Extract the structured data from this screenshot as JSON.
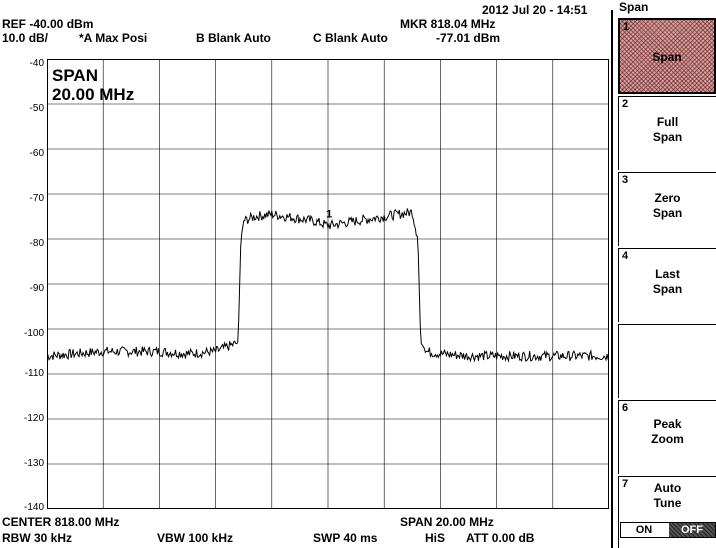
{
  "header": {
    "datetime": "2012 Jul 20 - 14:51",
    "ref": "REF  -40.00 dBm",
    "scale": "10.0 dB/",
    "trace_a": "*A Max Posi",
    "trace_b": "B Blank Auto",
    "trace_c": "C Blank Auto",
    "marker_freq": "MKR 818.04 MHz",
    "marker_level": "-77.01 dBm"
  },
  "plot": {
    "span_title": "SPAN",
    "span_value": "20.00 MHz",
    "marker_label": "1",
    "y_ticks": [
      "-40",
      "-50",
      "-60",
      "-70",
      "-80",
      "-90",
      "-100",
      "-110",
      "-120",
      "-130",
      "-140"
    ]
  },
  "footer": {
    "center": "CENTER 818.00 MHz",
    "span": "SPAN 20.00 MHz",
    "rbw": "RBW  30 kHz",
    "vbw": "VBW  100 kHz",
    "swp": "SWP  40 ms",
    "his": "HiS",
    "att": "ATT  0.00 dB"
  },
  "menu": {
    "title": "Span",
    "keys": [
      {
        "num": "1",
        "label": "Span",
        "active": true
      },
      {
        "num": "2",
        "label": "Full\nSpan"
      },
      {
        "num": "3",
        "label": "Zero\nSpan"
      },
      {
        "num": "4",
        "label": "Last\nSpan"
      },
      {
        "num": "",
        "label": ""
      },
      {
        "num": "6",
        "label": "Peak\nZoom"
      },
      {
        "num": "7",
        "label": "Auto\nTune"
      }
    ],
    "on_label": "ON",
    "off_label": "OFF"
  },
  "chart_data": {
    "type": "line",
    "xlabel": "",
    "ylabel": "",
    "xlim": [
      808.0,
      828.0
    ],
    "ylim": [
      -140,
      -40
    ],
    "grid": true,
    "series": [
      {
        "x": [
          808.0,
          809.0,
          810.0,
          811.0,
          812.0,
          813.0,
          814.0,
          814.8,
          814.9,
          815.0,
          815.4,
          816.0,
          816.5,
          817.0,
          817.5,
          818.0,
          818.04,
          818.5,
          819.0,
          819.5,
          820.0,
          820.5,
          821.0,
          821.2,
          821.3,
          821.5,
          822.0,
          823.0,
          824.0,
          825.0,
          826.0,
          827.0,
          828.0
        ],
        "y": [
          -106,
          -105.5,
          -105,
          -105,
          -105,
          -105.5,
          -105,
          -103,
          -80,
          -76,
          -75,
          -74.5,
          -75,
          -75.5,
          -76,
          -77,
          -77.01,
          -76.5,
          -76,
          -75.5,
          -75,
          -74.5,
          -74,
          -80,
          -103,
          -105,
          -105.5,
          -106,
          -106,
          -106,
          -106,
          -106,
          -106
        ]
      }
    ]
  }
}
